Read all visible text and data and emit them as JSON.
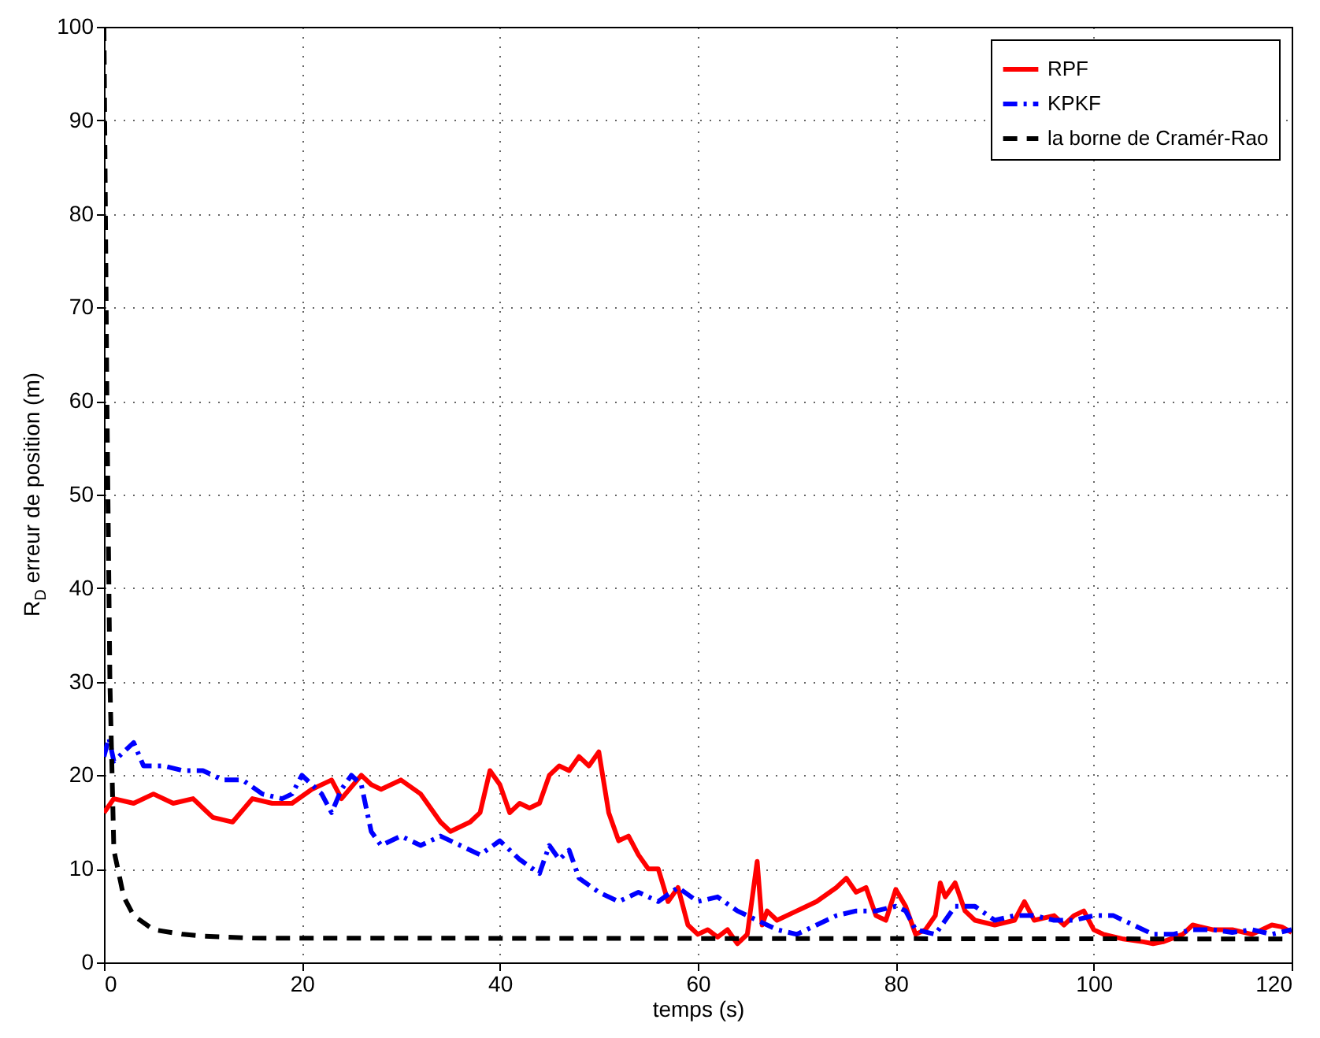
{
  "chart_data": {
    "type": "line",
    "xlabel": "temps (s)",
    "ylabel": "R$_{D}$ erreur de position (m)",
    "xlim": [
      0,
      120
    ],
    "ylim": [
      0,
      100
    ],
    "xticks": [
      0,
      20,
      40,
      60,
      80,
      100,
      120
    ],
    "yticks": [
      0,
      10,
      20,
      30,
      40,
      50,
      60,
      70,
      80,
      90,
      100
    ],
    "grid": true,
    "legend": "top right",
    "series": [
      {
        "name": "RPF",
        "color": "#ff0000",
        "line_style": "solid",
        "x": [
          0,
          1,
          3,
          5,
          7,
          9,
          11,
          13,
          15,
          17,
          19,
          21,
          23,
          24,
          26,
          27,
          28,
          30,
          32,
          34,
          35,
          37,
          38,
          39,
          40,
          41,
          42,
          43,
          44,
          45,
          46,
          47,
          48,
          49,
          50,
          51,
          52,
          53,
          54,
          55,
          56,
          57,
          58,
          59,
          60,
          61,
          62,
          63,
          64,
          65,
          66,
          66.5,
          67,
          68,
          70,
          72,
          74,
          75,
          76,
          77,
          78,
          79,
          80,
          81,
          82,
          83,
          84,
          84.5,
          85,
          86,
          87,
          88,
          90,
          92,
          93,
          94,
          96,
          97,
          98,
          99,
          100,
          101,
          103,
          105,
          106,
          107,
          109,
          110,
          112,
          114,
          116,
          118,
          119,
          120
        ],
        "values": [
          16,
          17.5,
          17,
          18,
          17,
          17.5,
          15.5,
          15,
          17.5,
          17,
          17,
          18.5,
          19.5,
          17.5,
          20,
          19,
          18.5,
          19.5,
          18,
          15,
          14,
          15,
          16,
          20.5,
          19,
          16,
          17,
          16.5,
          17,
          20,
          21,
          20.5,
          22,
          21,
          22.5,
          16,
          13,
          13.5,
          11.5,
          10,
          10,
          6.5,
          8,
          4,
          3,
          3.5,
          2.7,
          3.5,
          2,
          3,
          10.8,
          4,
          5.5,
          4.5,
          5.5,
          6.5,
          8,
          9,
          7.5,
          8,
          5,
          4.5,
          7.8,
          6,
          3,
          3.5,
          5,
          8.5,
          7,
          8.5,
          5.5,
          4.5,
          4,
          4.5,
          6.5,
          4.5,
          5,
          4,
          5,
          5.5,
          3.5,
          3,
          2.5,
          2.2,
          2,
          2.2,
          3,
          4,
          3.5,
          3.5,
          3,
          4,
          3.8,
          3.2
        ]
      },
      {
        "name": "KPKF",
        "color": "#0000ff",
        "line_style": "dashdot",
        "x": [
          0,
          0.5,
          1,
          3,
          4,
          6,
          8,
          10,
          12,
          14,
          16,
          18,
          19,
          20,
          22,
          23,
          24,
          25,
          26,
          27,
          28,
          30,
          32,
          34,
          36,
          38,
          40,
          42,
          44,
          45,
          46,
          47,
          48,
          50,
          52,
          54,
          56,
          58,
          60,
          62,
          64,
          66,
          68,
          70,
          72,
          74,
          76,
          78,
          80,
          81,
          82,
          84,
          86,
          88,
          90,
          92,
          94,
          96,
          98,
          100,
          102,
          104,
          106,
          108,
          110,
          112,
          114,
          116,
          118,
          120
        ],
        "values": [
          22,
          24,
          21.5,
          23.5,
          21,
          21,
          20.5,
          20.5,
          19.5,
          19.5,
          18,
          17.5,
          18,
          20,
          18,
          16,
          18.5,
          20,
          19,
          14,
          12.5,
          13.5,
          12.5,
          13.5,
          12.5,
          11.5,
          13,
          11,
          9.5,
          12.5,
          11,
          12,
          9,
          7.5,
          6.5,
          7.5,
          6.5,
          8,
          6.5,
          7,
          5.5,
          4.5,
          3.5,
          3,
          4,
          5,
          5.5,
          5.5,
          6,
          5.5,
          3.5,
          3,
          6,
          6,
          4.5,
          5,
          5,
          4.5,
          4.5,
          5,
          5,
          4,
          3,
          3,
          3.5,
          3.5,
          3.2,
          3.5,
          3,
          3.5
        ]
      },
      {
        "name": "la borne de Cramér-Rao",
        "color": "#000000",
        "line_style": "dashed",
        "x": [
          0,
          0.3,
          0.6,
          1,
          2,
          3,
          5,
          8,
          10,
          15,
          120
        ],
        "values": [
          100,
          60,
          30,
          12,
          7,
          5,
          3.5,
          3,
          2.8,
          2.6,
          2.5
        ]
      }
    ]
  }
}
